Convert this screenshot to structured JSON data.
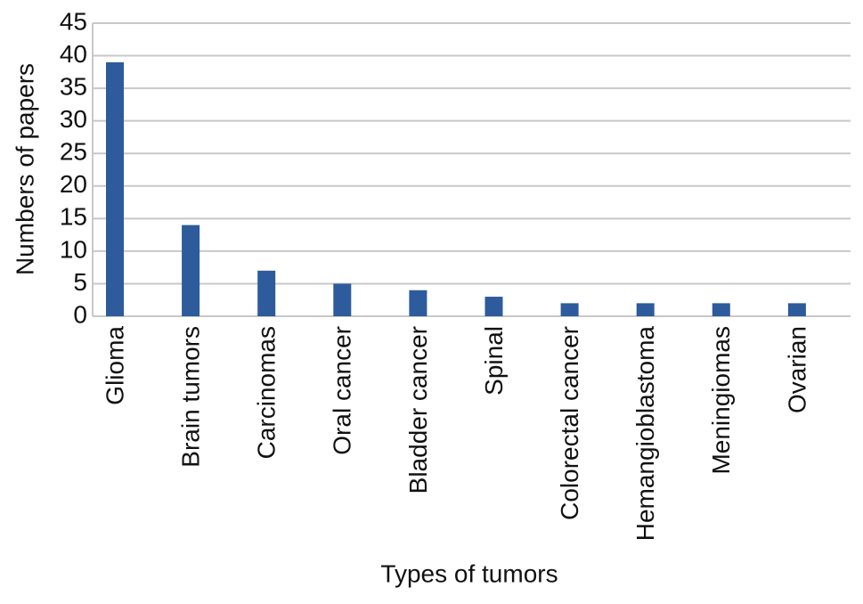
{
  "chart_data": {
    "type": "bar",
    "x_label": "Types of tumors",
    "y_label": "Numbers of papers",
    "categories": [
      "Glioma",
      "Brain tumors",
      "Carcinomas",
      "Oral cancer",
      "Bladder cancer",
      "Spinal",
      "Colorectal cancer",
      "Hemangioblastoma",
      "Meningiomas",
      "Ovarian"
    ],
    "values": [
      39,
      14,
      7,
      5,
      4,
      3,
      2,
      2,
      2,
      2
    ],
    "color": "#2d5b9b",
    "ylim": [
      0,
      45
    ],
    "yticks": [
      0,
      5,
      10,
      15,
      20,
      25,
      30,
      35,
      40,
      45
    ],
    "grid": true
  }
}
